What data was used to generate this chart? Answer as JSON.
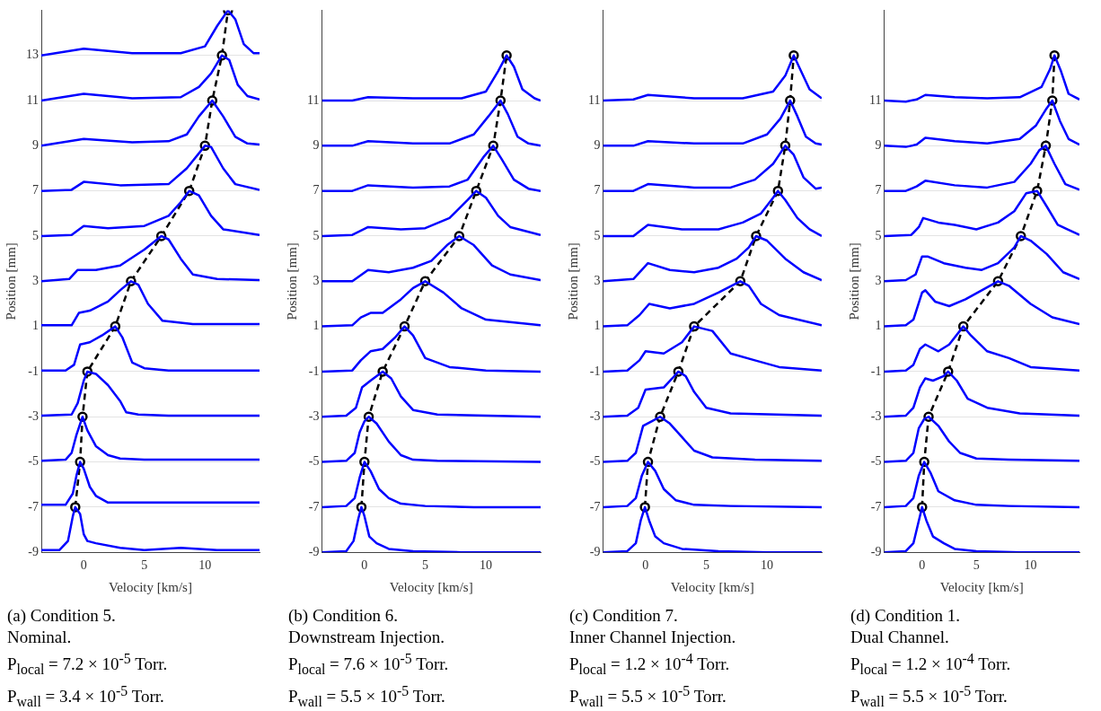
{
  "chart_data": [
    {
      "type": "line",
      "xlabel": "Velocity [km/s]",
      "ylabel": "Position [mm]",
      "xlim": [
        -3.5,
        14.5
      ],
      "ylim": [
        -9,
        15
      ],
      "xticks": [
        0,
        5,
        10
      ],
      "yticks": [
        -9,
        -7,
        -5,
        -3,
        -1,
        1,
        3,
        5,
        7,
        9,
        11,
        13
      ],
      "grid": "y",
      "legend": false,
      "annotations": [
        "(a) Condition 5.",
        "Nominal.",
        "P$_{local}$ = 7.2 × 10$^{-5}$ Torr.",
        "P$_{wall}$ = 3.4 × 10$^{-5}$ Torr."
      ],
      "series": [
        {
          "type": "line",
          "color": "#0000ff",
          "marker": "none",
          "line_style": "solid",
          "x": [
            -3.5,
            -2,
            -1.3,
            -0.9,
            -0.7,
            -0.3,
            0,
            0.3,
            1,
            3,
            5,
            8,
            11,
            14.5
          ],
          "values": [
            -8.9,
            -8.9,
            -8.5,
            -7.4,
            -7,
            -7.3,
            -8.2,
            -8.5,
            -8.6,
            -8.8,
            -8.9,
            -8.8,
            -8.9,
            -8.9
          ]
        },
        {
          "type": "line",
          "color": "#0000ff",
          "marker": "none",
          "line_style": "solid",
          "x": [
            -3.5,
            -1.5,
            -0.9,
            -0.6,
            -0.3,
            0,
            0.5,
            1,
            2,
            4,
            7,
            10,
            14.5
          ],
          "values": [
            -6.9,
            -6.9,
            -6.4,
            -5.6,
            -5,
            -5.3,
            -6.1,
            -6.5,
            -6.8,
            -6.8,
            -6.8,
            -6.8,
            -6.8
          ]
        },
        {
          "type": "line",
          "color": "#0000ff",
          "marker": "none",
          "line_style": "solid",
          "x": [
            -3.5,
            -1.5,
            -1,
            -0.6,
            -0.1,
            0.3,
            1,
            2,
            3,
            5,
            8,
            14.5
          ],
          "values": [
            -4.95,
            -4.9,
            -4.6,
            -3.8,
            -3,
            -3.6,
            -4.3,
            -4.7,
            -4.85,
            -4.9,
            -4.9,
            -4.9
          ]
        },
        {
          "type": "line",
          "color": "#0000ff",
          "marker": "none",
          "line_style": "solid",
          "x": [
            -3.5,
            -1,
            -0.5,
            0,
            0.3,
            1,
            2,
            3,
            3.5,
            4.5,
            7,
            14.5
          ],
          "values": [
            -2.95,
            -2.9,
            -2.4,
            -1.4,
            -1,
            -1.1,
            -1.6,
            -2.3,
            -2.8,
            -2.9,
            -2.95,
            -2.95
          ]
        },
        {
          "type": "line",
          "color": "#0000ff",
          "marker": "none",
          "line_style": "solid",
          "x": [
            -3.5,
            -1.5,
            -0.8,
            -0.3,
            0.5,
            1.5,
            2.6,
            3.2,
            4,
            5,
            7,
            14.5
          ],
          "values": [
            -0.95,
            -0.95,
            -0.7,
            0.2,
            0.3,
            0.6,
            1,
            0.5,
            -0.6,
            -0.85,
            -0.95,
            -0.95
          ]
        },
        {
          "type": "line",
          "color": "#0000ff",
          "marker": "none",
          "line_style": "solid",
          "x": [
            -3.5,
            -1,
            -0.4,
            0.5,
            2,
            3,
            3.9,
            4.5,
            5.3,
            6.5,
            9,
            14.5
          ],
          "values": [
            1.05,
            1.05,
            1.6,
            1.7,
            2.1,
            2.6,
            3,
            2.85,
            2,
            1.25,
            1.1,
            1.1
          ]
        },
        {
          "type": "line",
          "color": "#0000ff",
          "marker": "none",
          "line_style": "solid",
          "x": [
            -3.5,
            -1.2,
            -0.5,
            1,
            3,
            5,
            6.4,
            7,
            8,
            9,
            11,
            14.5
          ],
          "values": [
            3,
            3.1,
            3.5,
            3.5,
            3.7,
            4.4,
            5,
            4.85,
            4,
            3.3,
            3.1,
            3.05
          ]
        },
        {
          "type": "line",
          "color": "#0000ff",
          "marker": "none",
          "line_style": "solid",
          "x": [
            -3.5,
            -1,
            0,
            2,
            5,
            7,
            8,
            8.7,
            9.5,
            10.5,
            11.5,
            14.5
          ],
          "values": [
            5,
            5.05,
            5.45,
            5.35,
            5.45,
            5.9,
            6.5,
            7,
            6.8,
            5.9,
            5.3,
            5.05
          ]
        },
        {
          "type": "line",
          "color": "#0000ff",
          "marker": "none",
          "line_style": "solid",
          "x": [
            -3.5,
            -1,
            0,
            3,
            7,
            8.5,
            10,
            10.5,
            11.5,
            12.5,
            14.5
          ],
          "values": [
            7,
            7.05,
            7.4,
            7.25,
            7.3,
            8,
            9,
            8.95,
            8,
            7.3,
            7.05
          ]
        },
        {
          "type": "line",
          "color": "#0000ff",
          "marker": "none",
          "line_style": "solid",
          "x": [
            -3.5,
            0,
            4,
            7,
            8.5,
            9.5,
            10.6,
            11.5,
            12.5,
            13.5,
            14.5
          ],
          "values": [
            9,
            9.3,
            9.15,
            9.2,
            9.5,
            10.3,
            11,
            10.3,
            9.4,
            9.1,
            9.05
          ]
        },
        {
          "type": "line",
          "color": "#0000ff",
          "marker": "none",
          "line_style": "solid",
          "x": [
            -3.5,
            0,
            4,
            8,
            9.5,
            10.5,
            11.4,
            12,
            12.7,
            13.5,
            14.5
          ],
          "values": [
            11,
            11.3,
            11.1,
            11.15,
            11.6,
            12.2,
            13,
            12.8,
            11.7,
            11.2,
            11.05
          ]
        },
        {
          "type": "line",
          "color": "#0000ff",
          "marker": "none",
          "line_style": "solid",
          "x": [
            -3.5,
            0,
            4,
            8,
            10,
            11,
            11.9,
            12.5,
            13.2,
            14,
            14.5
          ],
          "values": [
            13,
            13.3,
            13.1,
            13.1,
            13.4,
            14.3,
            15,
            14.6,
            13.5,
            13.1,
            13.1
          ]
        },
        {
          "type": "line",
          "color": "#000000",
          "marker": "circle",
          "line_style": "dashed",
          "x": [
            -0.7,
            -0.3,
            -0.1,
            0.3,
            2.6,
            3.9,
            6.4,
            8.7,
            10,
            10.6,
            11.4,
            11.9
          ],
          "values": [
            -7,
            -5,
            -3,
            -1,
            1,
            3,
            5,
            7,
            9,
            11,
            13,
            15
          ]
        }
      ]
    },
    {
      "type": "line",
      "xlabel": "Velocity [km/s]",
      "ylabel": "Position [mm]",
      "xlim": [
        -3.5,
        14.5
      ],
      "ylim": [
        -9,
        15
      ],
      "xticks": [
        0,
        5,
        10
      ],
      "yticks": [
        -9,
        -7,
        -5,
        -3,
        -1,
        1,
        3,
        5,
        7,
        9,
        11
      ],
      "grid": "y",
      "legend": false,
      "annotations": [
        "(b) Condition 6.",
        "Downstream Injection.",
        "P$_{local}$ = 7.6 × 10$^{-5}$ Torr.",
        "P$_{wall}$ = 5.5 × 10$^{-5}$ Torr."
      ],
      "series": [
        {
          "type": "line",
          "color": "#0000ff",
          "marker": "none",
          "line_style": "solid",
          "x": [
            -3.5,
            -1.5,
            -0.9,
            -0.5,
            -0.25,
            0,
            0.4,
            1,
            2,
            4,
            8,
            14.5
          ],
          "values": [
            -9,
            -8.95,
            -8.5,
            -7.5,
            -7,
            -7.4,
            -8.3,
            -8.6,
            -8.85,
            -8.95,
            -9,
            -9
          ]
        },
        {
          "type": "line",
          "color": "#0000ff",
          "marker": "none",
          "line_style": "solid",
          "x": [
            -3.5,
            -1.5,
            -0.8,
            -0.4,
            0,
            0.5,
            1.2,
            2,
            3,
            5,
            9,
            14.5
          ],
          "values": [
            -7,
            -6.95,
            -6.6,
            -5.7,
            -5,
            -5.4,
            -6.2,
            -6.6,
            -6.85,
            -6.95,
            -7,
            -7
          ]
        },
        {
          "type": "line",
          "color": "#0000ff",
          "marker": "none",
          "line_style": "solid",
          "x": [
            -3.5,
            -1.5,
            -0.8,
            -0.4,
            0,
            0.35,
            1,
            2,
            3,
            4,
            6,
            14.5
          ],
          "values": [
            -5,
            -4.95,
            -4.6,
            -3.7,
            -3.2,
            -3,
            -3.3,
            -4.1,
            -4.7,
            -4.9,
            -4.95,
            -5
          ]
        },
        {
          "type": "line",
          "color": "#0000ff",
          "marker": "none",
          "line_style": "solid",
          "x": [
            -3.5,
            -1.5,
            -0.7,
            -0.2,
            0.5,
            1.5,
            2.2,
            3,
            4,
            6,
            14.5
          ],
          "values": [
            -3,
            -2.95,
            -2.6,
            -1.7,
            -1.4,
            -1,
            -1.3,
            -2.1,
            -2.7,
            -2.9,
            -3
          ]
        },
        {
          "type": "line",
          "color": "#0000ff",
          "marker": "none",
          "line_style": "solid",
          "x": [
            -3.5,
            -1,
            -0.3,
            0.5,
            1.5,
            2.5,
            3.3,
            4,
            5,
            7,
            10,
            14.5
          ],
          "values": [
            -1,
            -0.95,
            -0.5,
            -0.1,
            0,
            0.5,
            1,
            0.6,
            -0.4,
            -0.8,
            -0.95,
            -1
          ]
        },
        {
          "type": "line",
          "color": "#0000ff",
          "marker": "none",
          "line_style": "solid",
          "x": [
            -3.5,
            -1,
            -0.3,
            0.5,
            1.5,
            3,
            4,
            5,
            6.5,
            8,
            10,
            14.5
          ],
          "values": [
            1,
            1.05,
            1.4,
            1.6,
            1.6,
            2.2,
            2.7,
            3,
            2.5,
            1.8,
            1.3,
            1.05
          ]
        },
        {
          "type": "line",
          "color": "#0000ff",
          "marker": "none",
          "line_style": "solid",
          "x": [
            -3.5,
            -1,
            0.3,
            2,
            4,
            5.5,
            6.8,
            7.8,
            9,
            10.5,
            12,
            14.5
          ],
          "values": [
            3,
            3,
            3.5,
            3.4,
            3.6,
            3.9,
            4.6,
            5,
            4.6,
            3.7,
            3.3,
            3.05
          ]
        },
        {
          "type": "line",
          "color": "#0000ff",
          "marker": "none",
          "line_style": "solid",
          "x": [
            -3.5,
            -1,
            0.3,
            3,
            5,
            7,
            8.5,
            9.2,
            10,
            11,
            12,
            14.5
          ],
          "values": [
            5,
            5.05,
            5.4,
            5.3,
            5.35,
            5.8,
            6.6,
            7,
            6.7,
            5.9,
            5.4,
            5.05
          ]
        },
        {
          "type": "line",
          "color": "#0000ff",
          "marker": "none",
          "line_style": "solid",
          "x": [
            -3.5,
            -1,
            0.3,
            4,
            7,
            8.5,
            9.8,
            10.6,
            11.3,
            12.3,
            13.5,
            14.5
          ],
          "values": [
            7,
            7,
            7.25,
            7.15,
            7.2,
            7.5,
            8.5,
            9,
            8.4,
            7.5,
            7.1,
            7
          ]
        },
        {
          "type": "line",
          "color": "#0000ff",
          "marker": "none",
          "line_style": "solid",
          "x": [
            -3.5,
            -1,
            0.3,
            4,
            7,
            9,
            10.2,
            11.2,
            11.8,
            12.6,
            13.5,
            14.5
          ],
          "values": [
            9,
            9,
            9.2,
            9.1,
            9.1,
            9.5,
            10.3,
            11,
            10.4,
            9.4,
            9.1,
            9
          ]
        },
        {
          "type": "line",
          "color": "#0000ff",
          "marker": "none",
          "line_style": "solid",
          "x": [
            -3.5,
            -1,
            0.3,
            4,
            8,
            10,
            11,
            11.7,
            12.3,
            13,
            14,
            14.5
          ],
          "values": [
            11,
            11,
            11.15,
            11.1,
            11.1,
            11.4,
            12.3,
            13,
            12.5,
            11.5,
            11.1,
            11
          ]
        },
        {
          "type": "line",
          "color": "#000000",
          "marker": "circle",
          "line_style": "dashed",
          "x": [
            -0.25,
            0,
            0.35,
            1.5,
            3.3,
            5,
            7.8,
            9.2,
            10.6,
            11.2,
            11.7
          ],
          "values": [
            -7,
            -5,
            -3,
            -1,
            1,
            3,
            5,
            7,
            9,
            11,
            13
          ]
        }
      ]
    },
    {
      "type": "line",
      "xlabel": "Velocity [km/s]",
      "ylabel": "Position [mm]",
      "xlim": [
        -3.5,
        14.5
      ],
      "ylim": [
        -9,
        15
      ],
      "xticks": [
        0,
        5,
        10
      ],
      "yticks": [
        -9,
        -7,
        -5,
        -3,
        -1,
        1,
        3,
        5,
        7,
        9,
        11
      ],
      "grid": "y",
      "legend": false,
      "annotations": [
        "(c) Condition 7.",
        "Inner Channel Injection.",
        "P$_{local}$ = 1.2 × 10$^{-4}$ Torr.",
        "P$_{wall}$ = 5.5 × 10$^{-5}$ Torr."
      ],
      "series": [
        {
          "type": "line",
          "color": "#0000ff",
          "marker": "none",
          "line_style": "solid",
          "x": [
            -3.5,
            -1.5,
            -0.8,
            -0.4,
            -0.05,
            0.3,
            0.8,
            1.5,
            3,
            6,
            10,
            14.5
          ],
          "values": [
            -9,
            -8.95,
            -8.6,
            -7.6,
            -7,
            -7.6,
            -8.3,
            -8.6,
            -8.85,
            -8.95,
            -9,
            -9
          ]
        },
        {
          "type": "line",
          "color": "#0000ff",
          "marker": "none",
          "line_style": "solid",
          "x": [
            -3.5,
            -1.5,
            -0.8,
            -0.3,
            0.2,
            0.8,
            1.5,
            2.5,
            4,
            7,
            14.5
          ],
          "values": [
            -7,
            -6.95,
            -6.6,
            -5.6,
            -5,
            -5.4,
            -6.2,
            -6.7,
            -6.9,
            -6.95,
            -7
          ]
        },
        {
          "type": "line",
          "color": "#0000ff",
          "marker": "none",
          "line_style": "solid",
          "x": [
            -3.5,
            -1.5,
            -0.8,
            -0.2,
            0.5,
            1.2,
            2,
            3,
            4,
            5.5,
            9,
            14.5
          ],
          "values": [
            -5,
            -4.95,
            -4.6,
            -3.4,
            -3.2,
            -3,
            -3.3,
            -3.9,
            -4.5,
            -4.8,
            -4.9,
            -4.95
          ]
        },
        {
          "type": "line",
          "color": "#0000ff",
          "marker": "none",
          "line_style": "solid",
          "x": [
            -3.5,
            -1.5,
            -0.6,
            0,
            1.5,
            2.2,
            2.7,
            3.3,
            4,
            5,
            7,
            14.5
          ],
          "values": [
            -3,
            -2.95,
            -2.6,
            -1.8,
            -1.7,
            -1.3,
            -1,
            -1.2,
            -1.9,
            -2.6,
            -2.85,
            -2.95
          ]
        },
        {
          "type": "line",
          "color": "#0000ff",
          "marker": "none",
          "line_style": "solid",
          "x": [
            -3.5,
            -1.5,
            -0.5,
            0,
            1.5,
            3,
            4,
            5.5,
            7,
            9,
            11,
            14.5
          ],
          "values": [
            -1,
            -0.95,
            -0.5,
            -0.1,
            -0.2,
            0.3,
            1,
            0.8,
            -0.2,
            -0.5,
            -0.8,
            -0.95
          ]
        },
        {
          "type": "line",
          "color": "#0000ff",
          "marker": "none",
          "line_style": "solid",
          "x": [
            -3.5,
            -1.5,
            -0.5,
            0.3,
            2,
            4,
            6,
            7.8,
            8.5,
            9.5,
            11,
            14.5
          ],
          "values": [
            1,
            1.05,
            1.5,
            2,
            1.8,
            2,
            2.5,
            3,
            2.8,
            2,
            1.5,
            1.05
          ]
        },
        {
          "type": "line",
          "color": "#0000ff",
          "marker": "none",
          "line_style": "solid",
          "x": [
            -3.5,
            -1,
            0.2,
            2,
            4,
            6,
            7.5,
            8.5,
            9.1,
            10,
            11.5,
            13,
            14.5
          ],
          "values": [
            3,
            3.1,
            3.8,
            3.5,
            3.4,
            3.6,
            4,
            4.5,
            5,
            4.8,
            4,
            3.4,
            3.05
          ]
        },
        {
          "type": "line",
          "color": "#0000ff",
          "marker": "none",
          "line_style": "solid",
          "x": [
            -3.5,
            -1,
            0.2,
            3,
            6,
            8,
            9.5,
            10.5,
            10.9,
            11.5,
            12.5,
            13.5,
            14.5
          ],
          "values": [
            5,
            5,
            5.5,
            5.3,
            5.3,
            5.6,
            6,
            6.7,
            7,
            6.6,
            5.8,
            5.3,
            5
          ]
        },
        {
          "type": "line",
          "color": "#0000ff",
          "marker": "none",
          "line_style": "solid",
          "x": [
            -3.5,
            -1,
            0.2,
            4,
            7,
            9,
            10.5,
            11.5,
            12.2,
            13,
            14,
            14.5
          ],
          "values": [
            7,
            7,
            7.3,
            7.15,
            7.15,
            7.5,
            8.2,
            9,
            8.6,
            7.6,
            7.1,
            7.15
          ]
        },
        {
          "type": "line",
          "color": "#0000ff",
          "marker": "none",
          "line_style": "solid",
          "x": [
            -3.5,
            -1,
            0.2,
            4,
            8,
            10,
            11.1,
            11.9,
            12.5,
            13.2,
            14,
            14.5
          ],
          "values": [
            9,
            9,
            9.2,
            9.1,
            9.1,
            9.5,
            10.2,
            11,
            10.3,
            9.4,
            9.1,
            9.05
          ]
        },
        {
          "type": "line",
          "color": "#0000ff",
          "marker": "none",
          "line_style": "solid",
          "x": [
            -3.5,
            -1,
            0.2,
            4,
            8,
            10.5,
            11.5,
            12.2,
            12.8,
            13.5,
            14.5
          ],
          "values": [
            11,
            11.05,
            11.25,
            11.1,
            11.1,
            11.4,
            12.1,
            13,
            12.3,
            11.5,
            11.1
          ]
        },
        {
          "type": "line",
          "color": "#000000",
          "marker": "circle",
          "line_style": "dashed",
          "x": [
            -0.05,
            0.2,
            1.2,
            2.7,
            4,
            7.8,
            9.1,
            10.9,
            11.5,
            11.9,
            12.2
          ],
          "values": [
            -7,
            -5,
            -3,
            -1,
            1,
            3,
            5,
            7,
            9,
            11,
            13
          ]
        }
      ]
    },
    {
      "type": "line",
      "xlabel": "Velocity [km/s]",
      "ylabel": "Position [mm]",
      "xlim": [
        -3.5,
        14.5
      ],
      "ylim": [
        -9,
        15
      ],
      "xticks": [
        0,
        5,
        10
      ],
      "yticks": [
        -9,
        -7,
        -5,
        -3,
        -1,
        1,
        3,
        5,
        7,
        9,
        11
      ],
      "grid": "y",
      "legend": false,
      "annotations": [
        "(d) Condition 1.",
        "Dual Channel.",
        "P$_{local}$ = 1.2 × 10$^{-4}$ Torr.",
        "P$_{wall}$ = 5.5 × 10$^{-5}$ Torr."
      ],
      "series": [
        {
          "type": "line",
          "color": "#0000ff",
          "marker": "none",
          "line_style": "solid",
          "x": [
            -3.5,
            -1.5,
            -0.8,
            -0.3,
            0,
            0.4,
            1,
            2,
            3,
            5,
            9,
            14.5
          ],
          "values": [
            -9,
            -8.95,
            -8.6,
            -7.6,
            -7,
            -7.6,
            -8.3,
            -8.6,
            -8.85,
            -8.95,
            -9,
            -9
          ]
        },
        {
          "type": "line",
          "color": "#0000ff",
          "marker": "none",
          "line_style": "solid",
          "x": [
            -3.5,
            -1.5,
            -0.8,
            -0.3,
            0.2,
            0.8,
            1.5,
            3,
            5,
            8,
            14.5
          ],
          "values": [
            -7,
            -6.95,
            -6.6,
            -5.6,
            -5,
            -5.5,
            -6.3,
            -6.7,
            -6.9,
            -6.95,
            -7
          ]
        },
        {
          "type": "line",
          "color": "#0000ff",
          "marker": "none",
          "line_style": "solid",
          "x": [
            -3.5,
            -1.5,
            -0.8,
            -0.3,
            0.2,
            0.6,
            1.5,
            2.5,
            3.5,
            5,
            8,
            14.5
          ],
          "values": [
            -5,
            -4.95,
            -4.6,
            -3.5,
            -3.1,
            -3,
            -3.4,
            -4.1,
            -4.6,
            -4.85,
            -4.9,
            -4.95
          ]
        },
        {
          "type": "line",
          "color": "#0000ff",
          "marker": "none",
          "line_style": "solid",
          "x": [
            -3.5,
            -1.5,
            -0.8,
            -0.2,
            0.3,
            1,
            2,
            2.4,
            3.2,
            4.2,
            6,
            9,
            14.5
          ],
          "values": [
            -3,
            -2.95,
            -2.6,
            -1.7,
            -1.3,
            -1.4,
            -1.2,
            -1,
            -1.4,
            -2.2,
            -2.6,
            -2.85,
            -2.95
          ]
        },
        {
          "type": "line",
          "color": "#0000ff",
          "marker": "none",
          "line_style": "solid",
          "x": [
            -3.5,
            -1.5,
            -0.8,
            -0.2,
            0.3,
            1.5,
            2.5,
            3.8,
            4.5,
            6,
            8,
            10,
            14.5
          ],
          "values": [
            -1,
            -0.95,
            -0.7,
            0,
            0.2,
            -0.1,
            0.2,
            1,
            0.6,
            -0.1,
            -0.4,
            -0.8,
            -0.95
          ]
        },
        {
          "type": "line",
          "color": "#0000ff",
          "marker": "none",
          "line_style": "solid",
          "x": [
            -3.5,
            -1.5,
            -0.8,
            0,
            0.3,
            1.2,
            2.5,
            4,
            5.5,
            7,
            8,
            10,
            12,
            14.5
          ],
          "values": [
            1,
            1.05,
            1.3,
            2.5,
            2.6,
            2.1,
            1.9,
            2.2,
            2.6,
            3,
            2.8,
            2,
            1.4,
            1.1
          ]
        },
        {
          "type": "line",
          "color": "#0000ff",
          "marker": "none",
          "line_style": "solid",
          "x": [
            -3.5,
            -1.5,
            -0.6,
            0,
            0.5,
            2,
            4,
            5.5,
            7,
            8.5,
            9.1,
            10,
            11.5,
            13,
            14.5
          ],
          "values": [
            3,
            3.05,
            3.3,
            4.1,
            4.1,
            3.8,
            3.6,
            3.5,
            3.8,
            4.5,
            5,
            4.8,
            4.2,
            3.4,
            3.1
          ]
        },
        {
          "type": "line",
          "color": "#0000ff",
          "marker": "none",
          "line_style": "solid",
          "x": [
            -3.5,
            -1,
            -0.3,
            0.1,
            1.5,
            3,
            5,
            7,
            8.5,
            9.6,
            10.6,
            11.5,
            12.5,
            14.5
          ],
          "values": [
            5,
            5.05,
            5.4,
            5.8,
            5.6,
            5.5,
            5.3,
            5.6,
            6.1,
            6.9,
            7,
            6.3,
            5.5,
            5.05
          ]
        },
        {
          "type": "line",
          "color": "#0000ff",
          "marker": "none",
          "line_style": "solid",
          "x": [
            -3.5,
            -1.5,
            -0.5,
            0.3,
            3,
            6,
            8.5,
            10,
            10.8,
            11.4,
            12.2,
            13.2,
            14.5
          ],
          "values": [
            7,
            7,
            7.2,
            7.45,
            7.25,
            7.15,
            7.4,
            8.2,
            8.8,
            9,
            8.2,
            7.3,
            7.05
          ]
        },
        {
          "type": "line",
          "color": "#0000ff",
          "marker": "none",
          "line_style": "solid",
          "x": [
            -3.5,
            -1.5,
            -0.5,
            0.3,
            3,
            6,
            9,
            10.5,
            11.4,
            12,
            12.7,
            13.5,
            14.5
          ],
          "values": [
            9,
            8.95,
            9.05,
            9.35,
            9.2,
            9.1,
            9.3,
            9.9,
            10.6,
            11,
            10.1,
            9.3,
            9.05
          ]
        },
        {
          "type": "line",
          "color": "#0000ff",
          "marker": "none",
          "line_style": "solid",
          "x": [
            -3.5,
            -1.5,
            -0.5,
            0.3,
            3,
            6,
            9,
            11,
            11.8,
            12.2,
            12.8,
            13.5,
            14.5
          ],
          "values": [
            11,
            10.95,
            11.05,
            11.25,
            11.15,
            11.1,
            11.15,
            11.6,
            12.4,
            13,
            12.3,
            11.3,
            11.05
          ]
        },
        {
          "type": "line",
          "color": "#000000",
          "marker": "circle",
          "line_style": "dashed",
          "x": [
            0,
            0.2,
            0.6,
            2.4,
            3.8,
            7,
            9.1,
            10.6,
            11.4,
            12,
            12.2
          ],
          "values": [
            -7,
            -5,
            -3,
            -1,
            1,
            3,
            5,
            7,
            9,
            11,
            13
          ]
        }
      ]
    }
  ]
}
